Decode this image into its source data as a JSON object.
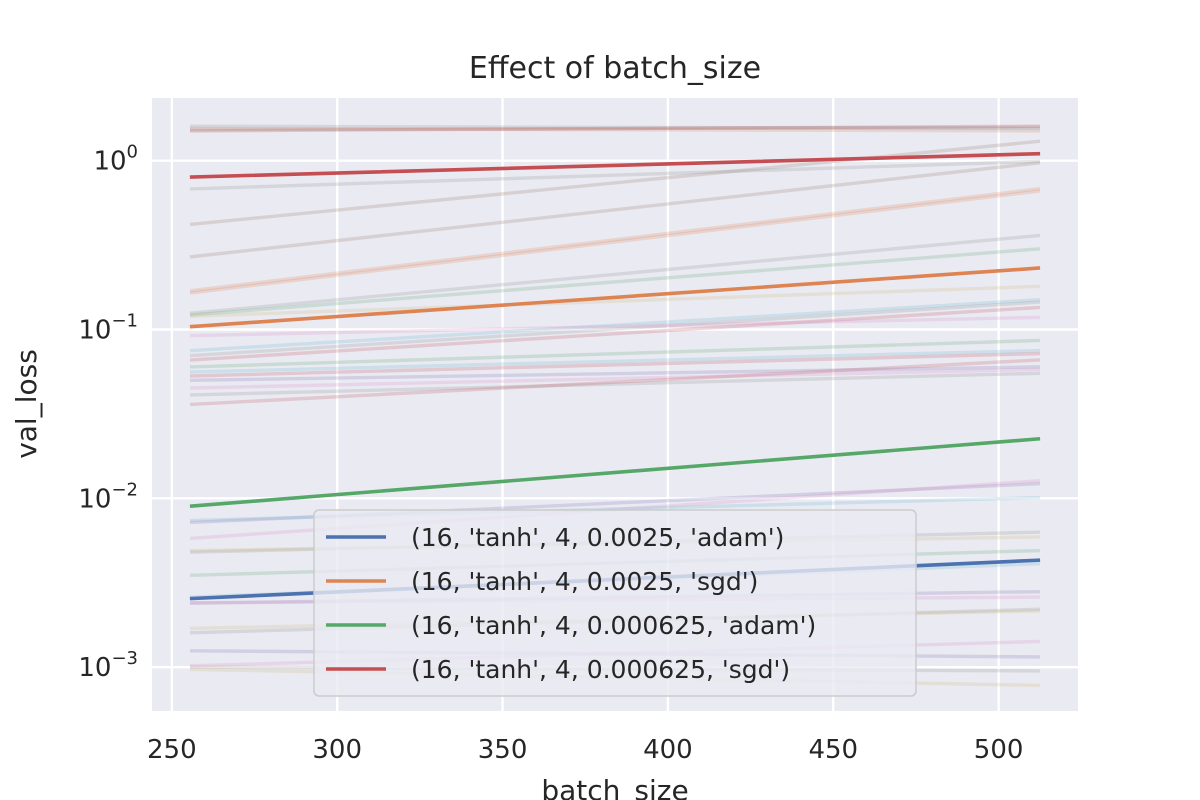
{
  "chart_data": {
    "type": "line",
    "title": "Effect of batch_size",
    "xlabel": "batch_size",
    "ylabel": "val_loss",
    "xlim": [
      244,
      524
    ],
    "ylim": [
      0.00055,
      2.35
    ],
    "yscale": "log",
    "x_ticks": [
      250,
      300,
      350,
      400,
      450,
      500
    ],
    "x_tick_labels": [
      "250",
      "300",
      "350",
      "400",
      "450",
      "500"
    ],
    "y_ticks": [
      0.001,
      0.01,
      0.1,
      1
    ],
    "y_tick_labels": [
      {
        "base": "10",
        "exp": "−3"
      },
      {
        "base": "10",
        "exp": "−2"
      },
      {
        "base": "10",
        "exp": "−1"
      },
      {
        "base": "10",
        "exp": "0"
      }
    ],
    "grid": true,
    "legend_position": "lower-center",
    "colors": {
      "plot_background": "#eaeaf2",
      "grid": "#ffffff",
      "blue": "#4c72b0",
      "orange": "#dd8452",
      "green": "#55a868",
      "red": "#c44e52",
      "purple": "#8172b3",
      "pink": "#da8bc3",
      "gray": "#8c8c8c",
      "olive": "#ccb974",
      "cyan": "#64b5cd",
      "brown": "#937860"
    },
    "series": [
      {
        "name": "(16, 'tanh', 4, 0.0025, 'adam')",
        "color": "#4c72b0",
        "x": [
          256,
          512
        ],
        "y": [
          0.00255,
          0.0043
        ]
      },
      {
        "name": "(16, 'tanh', 4, 0.0025, 'sgd')",
        "color": "#dd8452",
        "x": [
          256,
          512
        ],
        "y": [
          0.104,
          0.231
        ]
      },
      {
        "name": "(16, 'tanh', 4, 0.000625, 'adam')",
        "color": "#55a868",
        "x": [
          256,
          512
        ],
        "y": [
          0.009,
          0.0225
        ]
      },
      {
        "name": "(16, 'tanh', 4, 0.000625, 'sgd')",
        "color": "#c44e52",
        "x": [
          256,
          512
        ],
        "y": [
          0.8,
          1.1
        ]
      }
    ],
    "background_series": [
      {
        "color": "#8c8c8c",
        "x": [
          256,
          512
        ],
        "y": [
          1.6,
          1.55
        ]
      },
      {
        "color": "#dd8452",
        "x": [
          256,
          512
        ],
        "y": [
          1.55,
          1.5
        ]
      },
      {
        "color": "#8c8c8c",
        "x": [
          256,
          512
        ],
        "y": [
          1.52,
          1.58
        ]
      },
      {
        "color": "#c44e52",
        "x": [
          256,
          512
        ],
        "y": [
          1.5,
          1.6
        ]
      },
      {
        "color": "#937860",
        "x": [
          256,
          512
        ],
        "y": [
          0.42,
          1.3
        ]
      },
      {
        "color": "#8c8c8c",
        "x": [
          256,
          512
        ],
        "y": [
          0.68,
          0.99
        ]
      },
      {
        "color": "#937860",
        "x": [
          256,
          512
        ],
        "y": [
          0.27,
          0.97
        ]
      },
      {
        "color": "#dd8452",
        "x": [
          256,
          512
        ],
        "y": [
          0.17,
          0.68
        ]
      },
      {
        "color": "#dd8452",
        "x": [
          256,
          512
        ],
        "y": [
          0.165,
          0.66
        ]
      },
      {
        "color": "#8c8c8c",
        "x": [
          256,
          512
        ],
        "y": [
          0.125,
          0.36
        ]
      },
      {
        "color": "#55a868",
        "x": [
          256,
          512
        ],
        "y": [
          0.122,
          0.3
        ]
      },
      {
        "color": "#ccb974",
        "x": [
          256,
          512
        ],
        "y": [
          0.12,
          0.18
        ]
      },
      {
        "color": "#64b5cd",
        "x": [
          256,
          512
        ],
        "y": [
          0.075,
          0.15
        ]
      },
      {
        "color": "#8c8c8c",
        "x": [
          256,
          512
        ],
        "y": [
          0.07,
          0.145
        ]
      },
      {
        "color": "#c44e52",
        "x": [
          256,
          512
        ],
        "y": [
          0.066,
          0.135
        ]
      },
      {
        "color": "#da8bc3",
        "x": [
          256,
          512
        ],
        "y": [
          0.092,
          0.118
        ]
      },
      {
        "color": "#55a868",
        "x": [
          256,
          512
        ],
        "y": [
          0.06,
          0.086
        ]
      },
      {
        "color": "#64b5cd",
        "x": [
          256,
          512
        ],
        "y": [
          0.056,
          0.075
        ]
      },
      {
        "color": "#c44e52",
        "x": [
          256,
          512
        ],
        "y": [
          0.053,
          0.072
        ]
      },
      {
        "color": "#8172b3",
        "x": [
          256,
          512
        ],
        "y": [
          0.05,
          0.06
        ]
      },
      {
        "color": "#da8bc3",
        "x": [
          256,
          512
        ],
        "y": [
          0.045,
          0.058
        ]
      },
      {
        "color": "#8c8c8c",
        "x": [
          256,
          512
        ],
        "y": [
          0.041,
          0.055
        ]
      },
      {
        "color": "#c44e52",
        "x": [
          256,
          512
        ],
        "y": [
          0.036,
          0.066
        ]
      },
      {
        "color": "#8172b3",
        "x": [
          256,
          512
        ],
        "y": [
          0.0072,
          0.0122
        ]
      },
      {
        "color": "#da8bc3",
        "x": [
          256,
          512
        ],
        "y": [
          0.0058,
          0.0127
        ]
      },
      {
        "color": "#64b5cd",
        "x": [
          256,
          512
        ],
        "y": [
          0.0074,
          0.0101
        ]
      },
      {
        "color": "#8c8c8c",
        "x": [
          256,
          512
        ],
        "y": [
          0.0048,
          0.0063
        ]
      },
      {
        "color": "#ccb974",
        "x": [
          256,
          512
        ],
        "y": [
          0.0049,
          0.0059
        ]
      },
      {
        "color": "#55a868",
        "x": [
          256,
          512
        ],
        "y": [
          0.0035,
          0.0049
        ]
      },
      {
        "color": "#64b5cd",
        "x": [
          256,
          512
        ],
        "y": [
          0.0026,
          0.0041
        ]
      },
      {
        "color": "#8172b3",
        "x": [
          256,
          512
        ],
        "y": [
          0.0024,
          0.0028
        ]
      },
      {
        "color": "#da8bc3",
        "x": [
          256,
          512
        ],
        "y": [
          0.0024,
          0.0026
        ]
      },
      {
        "color": "#8c8c8c",
        "x": [
          256,
          512
        ],
        "y": [
          0.0016,
          0.0022
        ]
      },
      {
        "color": "#ccb974",
        "x": [
          256,
          512
        ],
        "y": [
          0.0017,
          0.00215
        ]
      },
      {
        "color": "#8172b3",
        "x": [
          256,
          512
        ],
        "y": [
          0.00125,
          0.00115
        ]
      },
      {
        "color": "#da8bc3",
        "x": [
          256,
          512
        ],
        "y": [
          0.00102,
          0.00142
        ]
      },
      {
        "color": "#8c8c8c",
        "x": [
          256,
          512
        ],
        "y": [
          0.001,
          0.00095
        ]
      },
      {
        "color": "#ccb974",
        "x": [
          256,
          512
        ],
        "y": [
          0.00097,
          0.00078
        ]
      }
    ]
  }
}
